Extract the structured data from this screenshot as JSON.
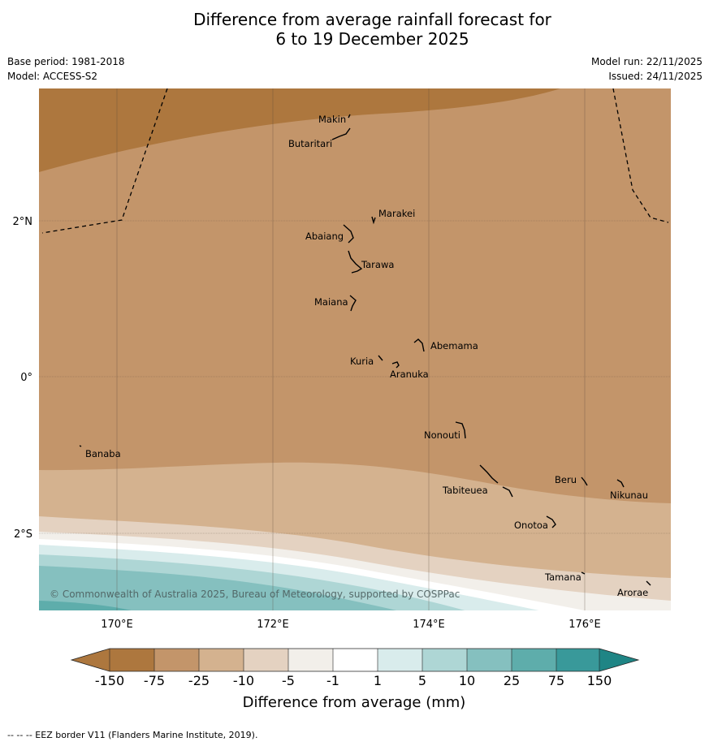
{
  "title": {
    "line1": "Difference from average rainfall forecast for",
    "line2": "6 to 19 December 2025"
  },
  "meta": {
    "base_period": "Base period: 1981-2018",
    "model": "Model: ACCESS-S2",
    "model_run": "Model run: 22/11/2025",
    "issued": "Issued: 24/11/2025"
  },
  "map": {
    "lat_labels": [
      "2°N",
      "0°",
      "2°S"
    ],
    "lon_labels": [
      "170°E",
      "172°E",
      "174°E",
      "176°E"
    ],
    "islands": [
      "Makin",
      "Butaritari",
      "Marakei",
      "Abaiang",
      "Tarawa",
      "Maiana",
      "Abemama",
      "Kuria",
      "Aranuka",
      "Nonouti",
      "Banaba",
      "Tabiteuea",
      "Beru",
      "Nikunau",
      "Onotoa",
      "Tamana",
      "Arorae"
    ],
    "copyright": "© Commonwealth of Australia 2025, Bureau of Meteorology, supported by COSPPac"
  },
  "legend": {
    "ticks": [
      "-150",
      "-75",
      "-25",
      "-10",
      "-5",
      "-1",
      "1",
      "5",
      "10",
      "25",
      "75",
      "150"
    ],
    "colors": [
      "#ad773e",
      "#c3956a",
      "#d4b28f",
      "#e4d2c1",
      "#f2efea",
      "#ffffff",
      "#d9ecec",
      "#aed6d5",
      "#85c0bf",
      "#5eadab",
      "#39999a",
      "#1f8585"
    ],
    "label": "Difference from average (mm)"
  },
  "footnote": "-- -- -- EEZ border V11 (Flanders Marine Institute, 2019)."
}
